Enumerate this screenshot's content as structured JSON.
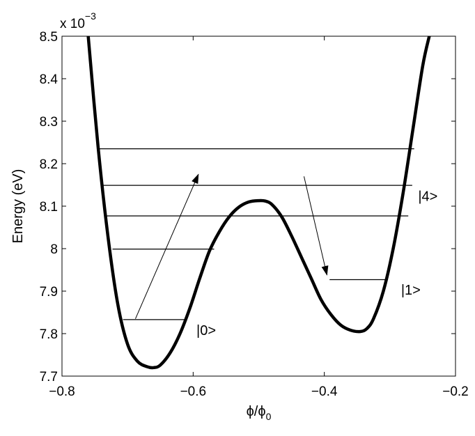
{
  "chart_data": {
    "type": "line",
    "title": "",
    "xlabel": "ϕ/ϕ",
    "xlabel_sub": "0",
    "ylabel": "Energy (eV)",
    "y_multiplier": {
      "base": "x 10",
      "exponent": "−3"
    },
    "xlim": [
      -0.8,
      -0.2
    ],
    "ylim": [
      7.7,
      8.5
    ],
    "x_ticks": [
      -0.8,
      -0.6,
      -0.4,
      -0.2
    ],
    "x_tick_labels": [
      "−0.8",
      "−0.6",
      "−0.4",
      "−0.2"
    ],
    "y_ticks": [
      7.7,
      7.8,
      7.9,
      8.0,
      8.1,
      8.2,
      8.3,
      8.4,
      8.5
    ],
    "y_tick_labels": [
      "7.7",
      "7.8",
      "7.9",
      "8",
      "8.1",
      "8.2",
      "8.3",
      "8.4",
      "8.5"
    ],
    "grid": false,
    "series": [
      {
        "x": [
          -0.76,
          -0.745,
          -0.73,
          -0.715,
          -0.7,
          -0.685,
          -0.67,
          -0.66,
          -0.65,
          -0.635,
          -0.62,
          -0.605,
          -0.59,
          -0.575,
          -0.56,
          -0.545,
          -0.53,
          -0.515,
          -0.5,
          -0.49,
          -0.48,
          -0.465,
          -0.45,
          -0.435,
          -0.42,
          -0.405,
          -0.39,
          -0.375,
          -0.36,
          -0.345,
          -0.335,
          -0.325,
          -0.31,
          -0.295,
          -0.28,
          -0.265,
          -0.25,
          -0.24
        ],
        "y": [
          8.5,
          8.24,
          8.03,
          7.87,
          7.775,
          7.735,
          7.722,
          7.72,
          7.726,
          7.755,
          7.8,
          7.86,
          7.93,
          7.995,
          8.04,
          8.075,
          8.098,
          8.11,
          8.113,
          8.112,
          8.104,
          8.075,
          8.03,
          7.98,
          7.93,
          7.88,
          7.845,
          7.82,
          7.808,
          7.805,
          7.812,
          7.835,
          7.9,
          8.0,
          8.13,
          8.28,
          8.43,
          8.5
        ],
        "style": "bold-black"
      }
    ],
    "energy_levels": [
      {
        "y": 8.235,
        "x": [
          -0.743,
          -0.263
        ]
      },
      {
        "y": 8.149,
        "x": [
          -0.738,
          -0.266
        ]
      },
      {
        "y": 8.077,
        "x": [
          -0.733,
          -0.272
        ]
      },
      {
        "y": 7.999,
        "x": [
          -0.723,
          -0.568
        ]
      },
      {
        "y": 7.927,
        "x": [
          -0.392,
          -0.303
        ]
      },
      {
        "y": 7.833,
        "x": [
          -0.707,
          -0.613
        ]
      }
    ],
    "arrows": [
      {
        "from": [
          -0.688,
          7.835
        ],
        "to": [
          -0.592,
          8.175
        ]
      },
      {
        "from": [
          -0.431,
          8.17
        ],
        "to": [
          -0.396,
          7.938
        ]
      }
    ],
    "annotations": [
      {
        "text": "|0>",
        "x": -0.595,
        "y": 7.808
      },
      {
        "text": "|1>",
        "x": -0.283,
        "y": 7.903
      },
      {
        "text": "|4>",
        "x": -0.257,
        "y": 8.124
      }
    ]
  }
}
